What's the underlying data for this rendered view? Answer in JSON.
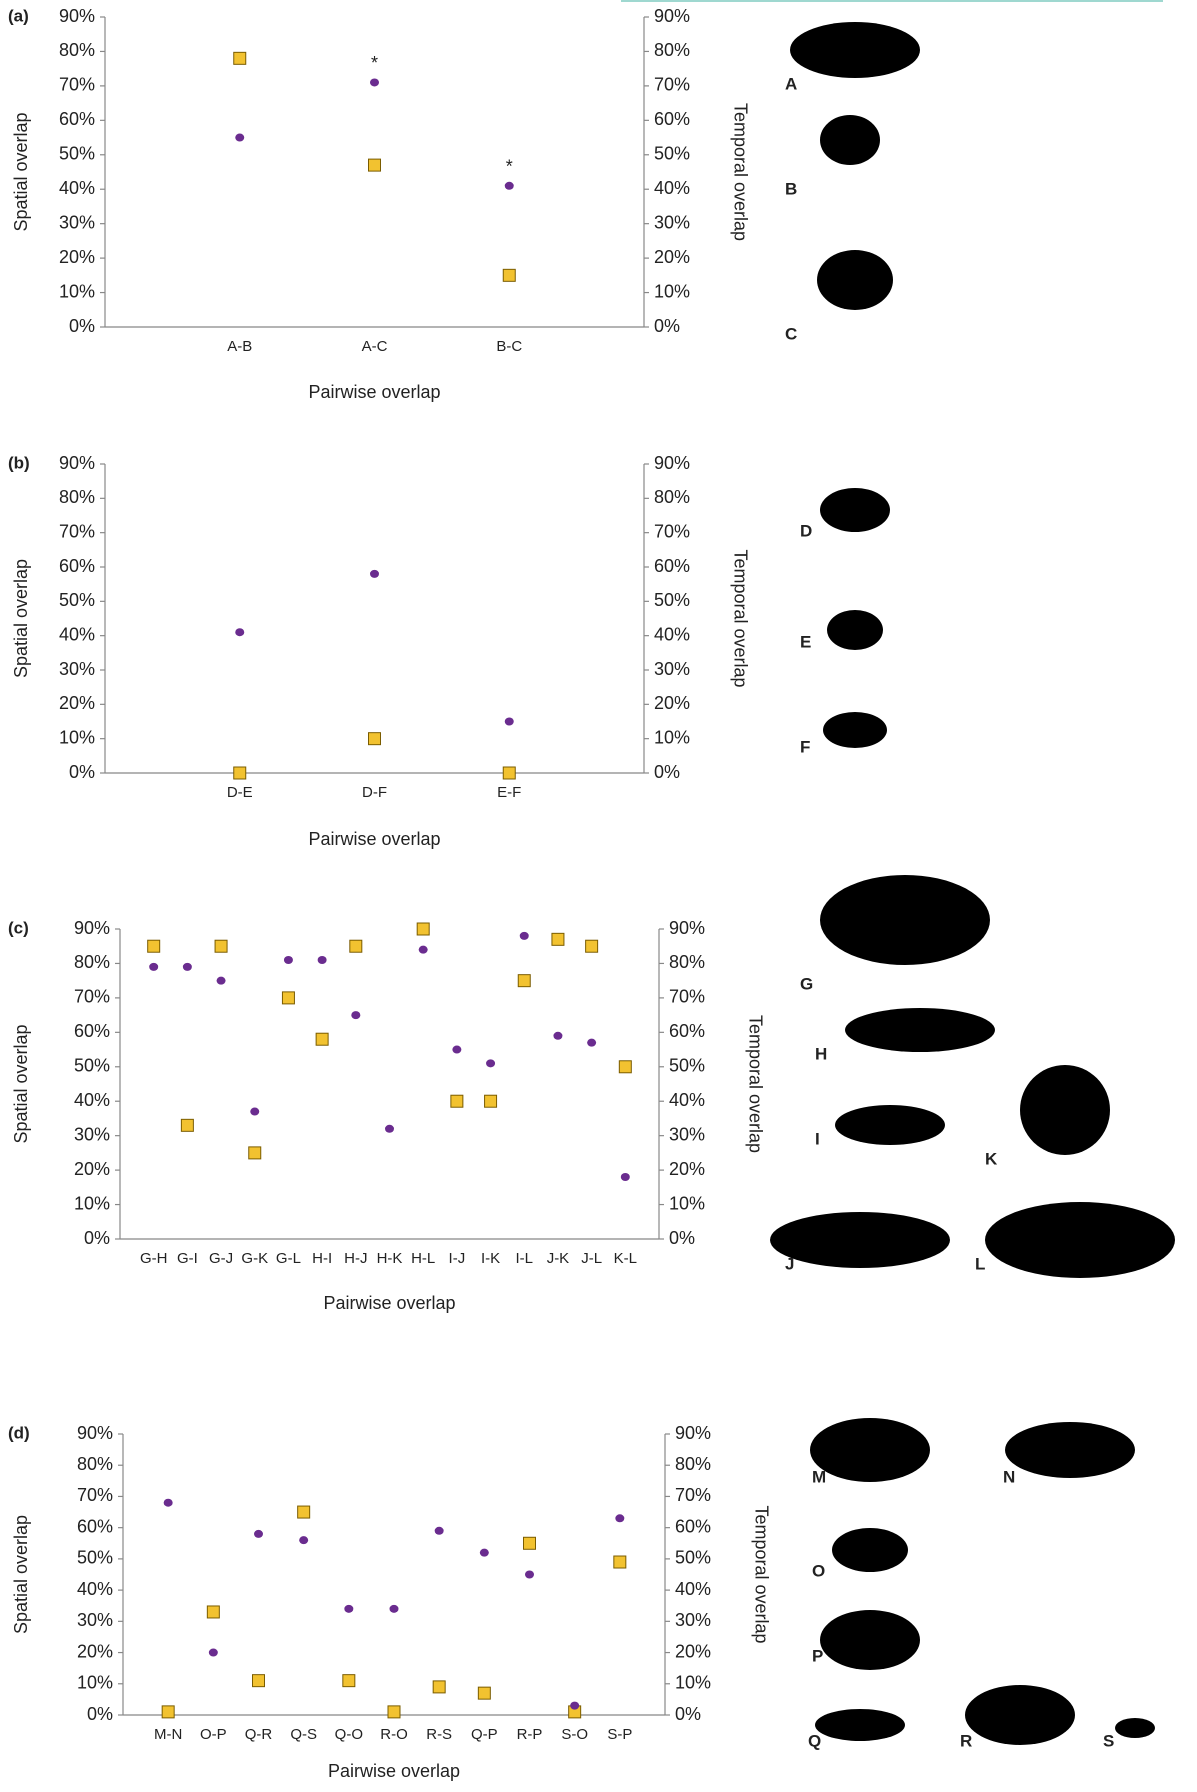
{
  "chart_data": [
    {
      "type": "scatter",
      "panel": "(a)",
      "y_label": "Spatial overlap",
      "y2_label": "Temporal overlap",
      "x_label": "Pairwise overlap",
      "categories": [
        "A-B",
        "A-C",
        "B-C"
      ],
      "series": [
        {
          "marker": "square",
          "color": "#f2c230",
          "axis": "y2",
          "values": [
            78,
            47,
            15
          ]
        },
        {
          "marker": "circle",
          "color": "#6a2c8f",
          "values": [
            55,
            71,
            41
          ]
        }
      ],
      "annotations": [
        {
          "text": "*",
          "category": 1
        },
        {
          "text": "*",
          "category": 2
        }
      ],
      "ylim": [
        0,
        90
      ],
      "y2lim": [
        0,
        90
      ],
      "yticks": [
        {
          "value": 0,
          "label": "0%"
        },
        {
          "value": 10,
          "label": "10%"
        },
        {
          "value": 20,
          "label": "20%"
        },
        {
          "value": 30,
          "label": "30%"
        },
        {
          "value": 40,
          "label": "40%"
        },
        {
          "value": 50,
          "label": "50%"
        },
        {
          "value": 60,
          "label": "60%"
        },
        {
          "value": 70,
          "label": "70%"
        },
        {
          "value": 80,
          "label": "80%"
        },
        {
          "value": 90,
          "label": "90%"
        }
      ],
      "y2ticks": [
        {
          "value": 0,
          "label": "0%"
        },
        {
          "value": 10,
          "label": "10%"
        },
        {
          "value": 20,
          "label": "20%"
        },
        {
          "value": 30,
          "label": "30%"
        },
        {
          "value": 40,
          "label": "40%"
        },
        {
          "value": 50,
          "label": "50%"
        },
        {
          "value": 60,
          "label": "60%"
        },
        {
          "value": 70,
          "label": "70%"
        },
        {
          "value": 80,
          "label": "80%"
        },
        {
          "value": 90,
          "label": "90%"
        }
      ],
      "species": [
        "A",
        "B",
        "C"
      ]
    },
    {
      "type": "scatter",
      "panel": "(b)",
      "y_label": "Spatial overlap",
      "y2_label": "Temporal overlap",
      "x_label": "Pairwise overlap",
      "categories": [
        "D-E",
        "D-F",
        "E-F"
      ],
      "series": [
        {
          "marker": "square",
          "color": "#f2c230",
          "axis": "y2",
          "values": [
            0,
            10,
            0
          ]
        },
        {
          "marker": "circle",
          "color": "#6a2c8f",
          "values": [
            41,
            58,
            15
          ]
        }
      ],
      "ylim": [
        0,
        90
      ],
      "y2lim": [
        0,
        90
      ],
      "yticks": [
        {
          "value": 0,
          "label": "0%"
        },
        {
          "value": 10,
          "label": "10%"
        },
        {
          "value": 20,
          "label": "20%"
        },
        {
          "value": 30,
          "label": "30%"
        },
        {
          "value": 40,
          "label": "40%"
        },
        {
          "value": 50,
          "label": "50%"
        },
        {
          "value": 60,
          "label": "60%"
        },
        {
          "value": 70,
          "label": "70%"
        },
        {
          "value": 80,
          "label": "80%"
        },
        {
          "value": 90,
          "label": "90%"
        }
      ],
      "y2ticks": [
        {
          "value": 0,
          "label": "0%"
        },
        {
          "value": 10,
          "label": "10%"
        },
        {
          "value": 20,
          "label": "20%"
        },
        {
          "value": 30,
          "label": "30%"
        },
        {
          "value": 40,
          "label": "40%"
        },
        {
          "value": 50,
          "label": "50%"
        },
        {
          "value": 60,
          "label": "60%"
        },
        {
          "value": 70,
          "label": "70%"
        },
        {
          "value": 80,
          "label": "80%"
        },
        {
          "value": 90,
          "label": "90%"
        }
      ],
      "species": [
        "D",
        "E",
        "F"
      ]
    },
    {
      "type": "scatter",
      "panel": "(c)",
      "y_label": "Spatial overlap",
      "y2_label": "Temporal overlap",
      "x_label": "Pairwise overlap",
      "categories": [
        "G-H",
        "G-I",
        "G-J",
        "G-K",
        "G-L",
        "H-I",
        "H-J",
        "H-K",
        "H-L",
        "I-J",
        "I-K",
        "I-L",
        "J-K",
        "J-L",
        "K-L"
      ],
      "series": [
        {
          "marker": "square",
          "color": "#f2c230",
          "axis": "y2",
          "values": [
            85,
            33,
            85,
            25,
            70,
            58,
            85,
            null,
            90,
            40,
            40,
            75,
            87,
            85,
            50
          ]
        },
        {
          "marker": "circle",
          "color": "#6a2c8f",
          "values": [
            79,
            79,
            75,
            37,
            81,
            81,
            65,
            32,
            84,
            55,
            51,
            88,
            59,
            57,
            18
          ]
        }
      ],
      "ylim": [
        0,
        90
      ],
      "y2lim": [
        0,
        90
      ],
      "yticks": [
        {
          "value": 0,
          "label": "0%"
        },
        {
          "value": 10,
          "label": "10%"
        },
        {
          "value": 20,
          "label": "20%"
        },
        {
          "value": 30,
          "label": "30%"
        },
        {
          "value": 40,
          "label": "40%"
        },
        {
          "value": 50,
          "label": "50%"
        },
        {
          "value": 60,
          "label": "60%"
        },
        {
          "value": 70,
          "label": "70%"
        },
        {
          "value": 80,
          "label": "80%"
        },
        {
          "value": 90,
          "label": "90%"
        }
      ],
      "y2ticks": [
        {
          "value": 0,
          "label": "0%"
        },
        {
          "value": 10,
          "label": "10%"
        },
        {
          "value": 20,
          "label": "20%"
        },
        {
          "value": 30,
          "label": "30%"
        },
        {
          "value": 40,
          "label": "40%"
        },
        {
          "value": 50,
          "label": "50%"
        },
        {
          "value": 60,
          "label": "60%"
        },
        {
          "value": 70,
          "label": "70%"
        },
        {
          "value": 80,
          "label": "80%"
        },
        {
          "value": 90,
          "label": "90%"
        }
      ],
      "species": [
        "G",
        "H",
        "I",
        "K",
        "J",
        "L"
      ]
    },
    {
      "type": "scatter",
      "panel": "(d)",
      "y_label": "Spatial overlap",
      "y2_label": "Temporal overlap",
      "x_label": "Pairwise overlap",
      "categories": [
        "M-N",
        "O-P",
        "Q-R",
        "Q-S",
        "Q-O",
        "R-O",
        "R-S",
        "Q-P",
        "R-P",
        "S-O",
        "S-P"
      ],
      "series": [
        {
          "marker": "square",
          "color": "#f2c230",
          "axis": "y2",
          "values": [
            1,
            33,
            11,
            65,
            11,
            1,
            9,
            7,
            55,
            1,
            49
          ]
        },
        {
          "marker": "circle",
          "color": "#6a2c8f",
          "values": [
            68,
            20,
            58,
            56,
            34,
            34,
            59,
            52,
            45,
            3,
            63
          ]
        }
      ],
      "ylim": [
        0,
        90
      ],
      "y2lim": [
        0,
        90
      ],
      "yticks": [
        {
          "value": 0,
          "label": "0%"
        },
        {
          "value": 10,
          "label": "10%"
        },
        {
          "value": 20,
          "label": "20%"
        },
        {
          "value": 30,
          "label": "30%"
        },
        {
          "value": 40,
          "label": "40%"
        },
        {
          "value": 50,
          "label": "50%"
        },
        {
          "value": 60,
          "label": "60%"
        },
        {
          "value": 70,
          "label": "70%"
        },
        {
          "value": 80,
          "label": "80%"
        },
        {
          "value": 90,
          "label": "90%"
        }
      ],
      "y2ticks": [
        {
          "value": 0,
          "label": "0%"
        },
        {
          "value": 10,
          "label": "10%"
        },
        {
          "value": 20,
          "label": "20%"
        },
        {
          "value": 30,
          "label": "30%"
        },
        {
          "value": 40,
          "label": "40%"
        },
        {
          "value": 50,
          "label": "50%"
        },
        {
          "value": 60,
          "label": "60%"
        },
        {
          "value": 70,
          "label": "70%"
        },
        {
          "value": 80,
          "label": "80%"
        },
        {
          "value": 90,
          "label": "90%"
        }
      ],
      "species": [
        "M",
        "N",
        "O",
        "P",
        "Q",
        "R",
        "S"
      ]
    }
  ]
}
